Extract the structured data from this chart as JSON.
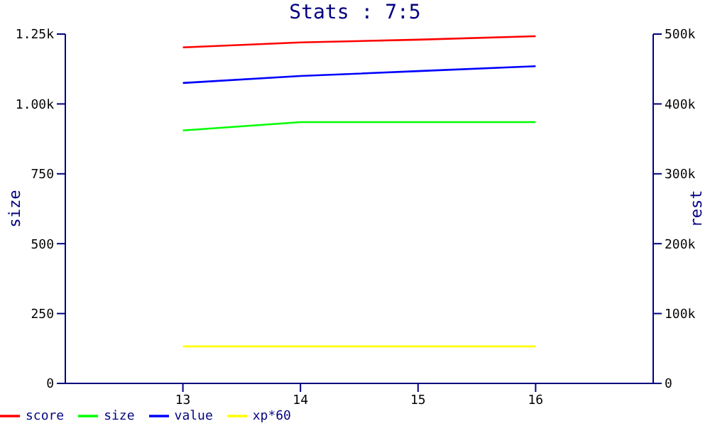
{
  "chart_data": {
    "type": "line",
    "title": "Stats : 7:5",
    "ylabel": "size",
    "y2label": "rest",
    "x": [
      13,
      14,
      15,
      16
    ],
    "xlim": [
      12,
      17
    ],
    "xticks": [
      13,
      14,
      15,
      16
    ],
    "ylim": [
      0,
      1250
    ],
    "yticks": [
      0,
      250,
      500,
      750,
      {
        "value": 1000,
        "label": "1.00k"
      },
      {
        "value": 1250,
        "label": "1.25k"
      }
    ],
    "y2lim": [
      0,
      500000
    ],
    "y2ticks": [
      {
        "value": 0,
        "label": "0"
      },
      {
        "value": 100000,
        "label": "100k"
      },
      {
        "value": 200000,
        "label": "200k"
      },
      {
        "value": 300000,
        "label": "300k"
      },
      {
        "value": 400000,
        "label": "400k"
      },
      {
        "value": 500000,
        "label": "500k"
      }
    ],
    "series": [
      {
        "name": "score",
        "color": "#ff0000",
        "axis": "y2",
        "values": [
          481000,
          488000,
          492000,
          497000
        ]
      },
      {
        "name": "size",
        "color": "#00ff00",
        "values": [
          905,
          935,
          935,
          935
        ]
      },
      {
        "name": "value",
        "color": "#0000ff",
        "axis": "y2",
        "values": [
          430000,
          440000,
          447000,
          454000
        ]
      },
      {
        "name": "xp*60",
        "color": "#ffff00",
        "axis": "y2",
        "values": [
          53000,
          53000,
          53000,
          53000
        ]
      }
    ],
    "grid": false,
    "legend": "bottom left",
    "marker": "none",
    "line_style": "solid"
  }
}
